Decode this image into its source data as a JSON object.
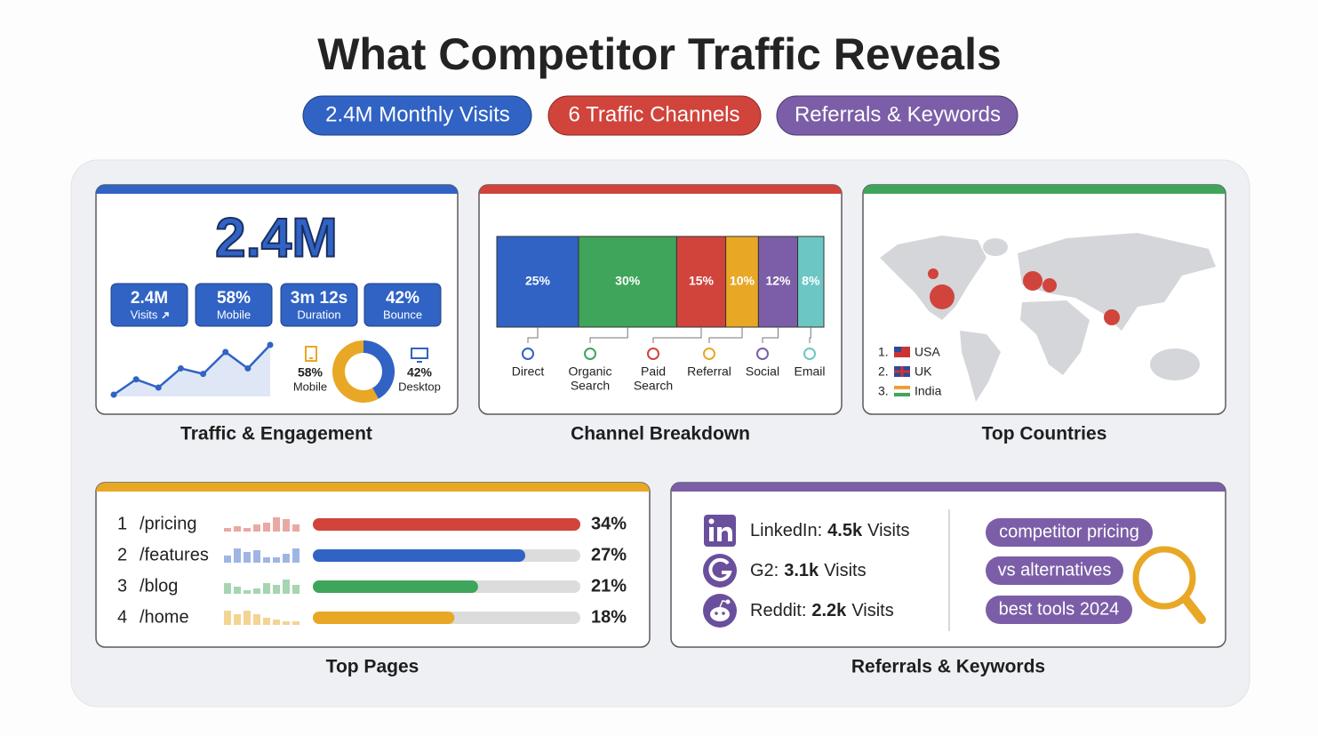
{
  "header": {
    "title": "What Competitor Traffic Reveals",
    "pills": [
      "2.4M Monthly Visits",
      "6 Traffic Channels",
      "Referrals & Keywords"
    ]
  },
  "traffic": {
    "caption": "Traffic & Engagement",
    "headline": "2.4M",
    "stats": [
      {
        "value": "2.4M",
        "label": "Visits"
      },
      {
        "value": "58%",
        "label": "Mobile"
      },
      {
        "value": "3m 12s",
        "label": "Duration"
      },
      {
        "value": "42%",
        "label": "Bounce"
      }
    ],
    "trend": [
      1.2,
      4,
      2.5,
      6,
      5,
      9,
      6,
      10.3
    ],
    "devices": [
      {
        "name": "Mobile",
        "value": 58,
        "label": "58%",
        "color": "#e8a825"
      },
      {
        "name": "Desktop",
        "value": 42,
        "label": "42%",
        "color": "#3063c4"
      }
    ]
  },
  "channels": {
    "caption": "Channel Breakdown",
    "items": [
      {
        "name": [
          "Direct"
        ],
        "value": 25,
        "label": "25%",
        "color": "#3063c4"
      },
      {
        "name": [
          "Organic",
          "Search"
        ],
        "value": 30,
        "label": "30%",
        "color": "#3fa55a"
      },
      {
        "name": [
          "Paid",
          "Search"
        ],
        "value": 15,
        "label": "15%",
        "color": "#d0443c"
      },
      {
        "name": [
          "Referral"
        ],
        "value": 10,
        "label": "10%",
        "color": "#e8a825"
      },
      {
        "name": [
          "Social"
        ],
        "value": 12,
        "label": "12%",
        "color": "#7b5ea7"
      },
      {
        "name": [
          "Email"
        ],
        "value": 8,
        "label": "8%",
        "color": "#6cc7c4"
      }
    ]
  },
  "countries": {
    "caption": "Top Countries",
    "items": [
      {
        "rank": "1.",
        "name": "USA"
      },
      {
        "rank": "2.",
        "name": "UK"
      },
      {
        "rank": "3.",
        "name": "India"
      }
    ]
  },
  "pages": {
    "caption": "Top Pages",
    "items": [
      {
        "rank": "1",
        "path": "/pricing",
        "value": 34,
        "label": "34%",
        "color": "#d0443c",
        "light": "#eaa8a3",
        "mini": [
          2,
          3,
          2,
          4,
          5,
          8,
          7,
          4
        ]
      },
      {
        "rank": "2",
        "path": "/features",
        "value": 27,
        "label": "27%",
        "color": "#3063c4",
        "light": "#9fb6e3",
        "mini": [
          4,
          8,
          6,
          7,
          3,
          3,
          5,
          8
        ]
      },
      {
        "rank": "3",
        "path": "/blog",
        "value": 21,
        "label": "21%",
        "color": "#3fa55a",
        "light": "#a5d5b1",
        "mini": [
          6,
          4,
          2,
          3,
          6,
          5,
          8,
          5
        ]
      },
      {
        "rank": "4",
        "path": "/home",
        "value": 18,
        "label": "18%",
        "color": "#e8a825",
        "light": "#f3d493",
        "mini": [
          8,
          6,
          8,
          6,
          4,
          3,
          2,
          2
        ]
      }
    ]
  },
  "referrals": {
    "caption": "Referrals & Keywords",
    "sources": [
      {
        "name": "LinkedIn:",
        "visits": "4.5k",
        "unit": "Visits"
      },
      {
        "name": "G2:",
        "visits": "3.1k",
        "unit": "Visits"
      },
      {
        "name": "Reddit:",
        "visits": "2.2k",
        "unit": "Visits"
      }
    ],
    "keywords": [
      "competitor pricing",
      "vs alternatives",
      "best tools 2024"
    ]
  }
}
